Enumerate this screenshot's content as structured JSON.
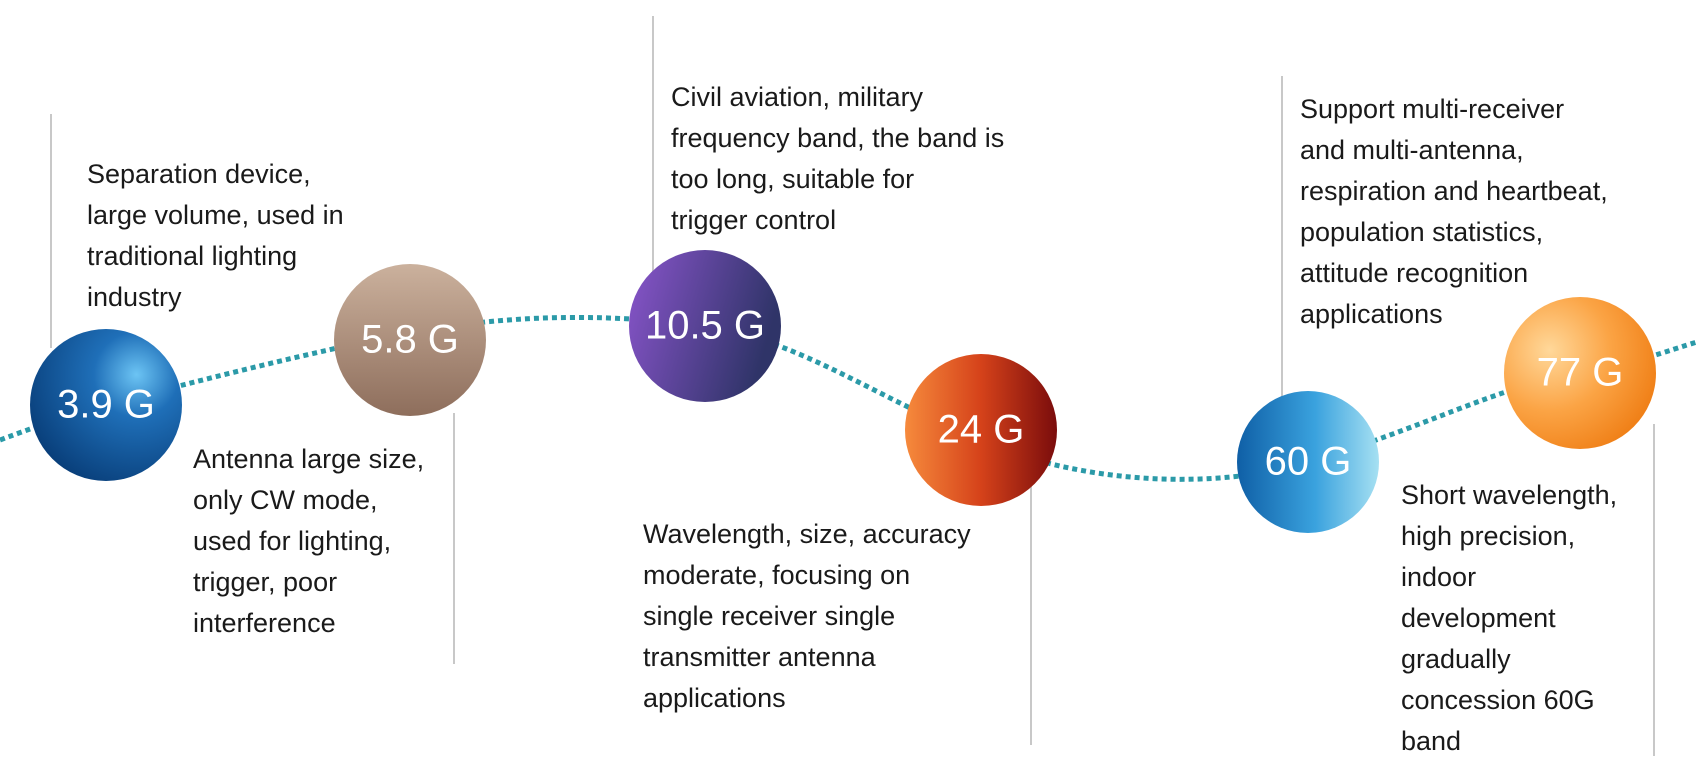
{
  "nodes": [
    {
      "label": "3.9 G",
      "description": [
        "Separation device,",
        "large volume, used in",
        "traditional lighting",
        "industry"
      ]
    },
    {
      "label": "5.8 G",
      "description": [
        "Antenna large size,",
        "only CW mode,",
        "used for lighting,",
        "trigger, poor",
        "interference"
      ]
    },
    {
      "label": "10.5 G",
      "description": [
        "Civil aviation, military",
        "frequency band, the band is",
        "too long, suitable for",
        "trigger control"
      ]
    },
    {
      "label": "24 G",
      "description": [
        "Wavelength, size, accuracy",
        "moderate, focusing on",
        "single receiver single",
        "transmitter antenna",
        "applications"
      ]
    },
    {
      "label": "60 G",
      "description": [
        "Support multi-receiver",
        "and multi-antenna,",
        "respiration and heartbeat,",
        "population statistics,",
        "attitude recognition",
        "applications"
      ]
    },
    {
      "label": "77 G",
      "description": [
        "Short wavelength,",
        "high precision,",
        "indoor",
        "development",
        "gradually",
        "concession 60G",
        "band"
      ]
    }
  ]
}
